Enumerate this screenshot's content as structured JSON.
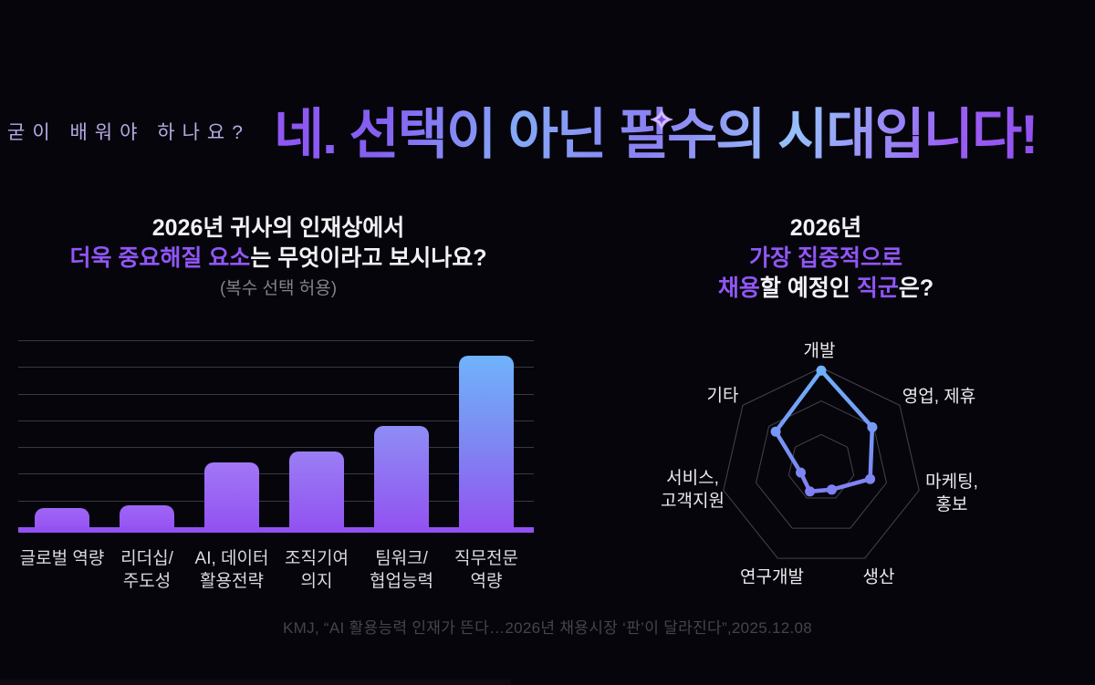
{
  "page": {
    "background": "#06050c",
    "accent_purple": "#9156f6",
    "accent_blue": "#6db3fb"
  },
  "header": {
    "kicker": "굳이 배워야 하나요?",
    "headline": "네. 선택이 아닌 필수의 시대입니다!",
    "sparkle_icon": "four-point-star",
    "sparkle_color": "#d3c1ff"
  },
  "left_section": {
    "title_line1": "2026년 귀사의 인재상에서",
    "title_line2_highlight": "더욱 중요해질 요소",
    "title_line2_rest": "는 무엇이라고 보시나요?",
    "subtitle": "(복수 선택 허용)"
  },
  "right_section": {
    "title_line1": "2026년",
    "title_line2": "가장 집중적으로",
    "title_line3_hl1": "채용",
    "title_line3_mid": "할 예정인 ",
    "title_line3_hl2": "직군",
    "title_line3_end": "은?"
  },
  "footer": {
    "citation": "KMJ, “AI 활용능력 인재가 뜬다…2026년 채용시장 ‘판’이 달라진다”,2025.12.08"
  },
  "chart_data": [
    {
      "type": "bar",
      "title": "2026년 귀사의 인재상에서 더욱 중요해질 요소는 무엇이라고 보시나요? (복수 선택 허용)",
      "categories": [
        "글로벌 역량",
        "리더십/\n주도성",
        "AI, 데이터\n활용전략",
        "조직기여\n의지",
        "팀워크/\n협업능력",
        "직무전문\n역량"
      ],
      "values_pct_of_max": [
        11,
        13,
        38,
        44,
        59,
        100
      ],
      "xlabel": "",
      "ylabel": "",
      "grid": true,
      "gridlines": 7,
      "legend": "none",
      "baseline_color": "#9350f3",
      "gridline_color": "#39393f",
      "bar_gradients": [
        [
          "#9f66f6",
          "#9655f2"
        ],
        [
          "#9f66f6",
          "#9655f2"
        ],
        [
          "#a276f6",
          "#9254f1"
        ],
        [
          "#9a7ef4",
          "#9254f1"
        ],
        [
          "#8e8df4",
          "#9254f1"
        ],
        [
          "#6fb3fb",
          "#7e88f2",
          "#9254f1"
        ]
      ]
    },
    {
      "type": "radar",
      "title": "2026년 가장 집중적으로 채용할 예정인 직군은?",
      "categories": [
        "개발",
        "영업, 제휴",
        "마케팅,\n홍보",
        "생산",
        "연구개발",
        "서비스,\n고객지원",
        "기타"
      ],
      "values_pct_of_max": [
        97,
        65,
        50,
        24,
        26,
        21,
        58
      ],
      "rings": [
        1,
        0.667,
        0.333
      ],
      "ring_color": "#44444c",
      "line_gradient": [
        "#6db4fc",
        "#7b88f2",
        "#9b5cf4"
      ],
      "legend": "none",
      "grid": true
    }
  ]
}
